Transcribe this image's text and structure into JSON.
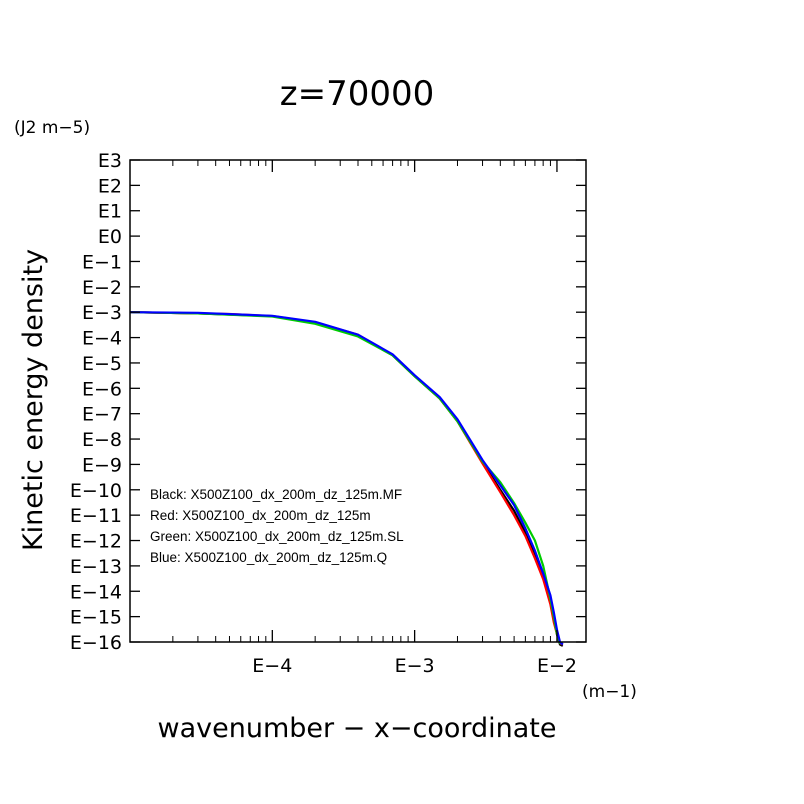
{
  "chart_data": {
    "type": "line",
    "title": "z=70000",
    "xlabel": "wavenumber − x−coordinate",
    "xunit": "(m−1)",
    "ylabel": "Kinetic energy density",
    "yunit": "(J2 m−5)",
    "x_scale": "log",
    "y_scale": "log",
    "xlim": [
      1e-05,
      0.016
    ],
    "ylim": [
      1e-16,
      1000
    ],
    "x_ticks": [
      {
        "value": 0.0001,
        "label": "E−4"
      },
      {
        "value": 0.001,
        "label": "E−3"
      },
      {
        "value": 0.01,
        "label": "E−2"
      }
    ],
    "y_ticks": [
      {
        "value": 1000.0,
        "label": "E3"
      },
      {
        "value": 100.0,
        "label": "E2"
      },
      {
        "value": 10.0,
        "label": "E1"
      },
      {
        "value": 1.0,
        "label": "E0"
      },
      {
        "value": 0.1,
        "label": "E−1"
      },
      {
        "value": 0.01,
        "label": "E−2"
      },
      {
        "value": 0.001,
        "label": "E−3"
      },
      {
        "value": 0.0001,
        "label": "E−4"
      },
      {
        "value": 1e-05,
        "label": "E−5"
      },
      {
        "value": 1e-06,
        "label": "E−6"
      },
      {
        "value": 1e-07,
        "label": "E−7"
      },
      {
        "value": 1e-08,
        "label": "E−8"
      },
      {
        "value": 1e-09,
        "label": "E−9"
      },
      {
        "value": 1e-10,
        "label": "E−10"
      },
      {
        "value": 1e-11,
        "label": "E−11"
      },
      {
        "value": 1e-12,
        "label": "E−12"
      },
      {
        "value": 1e-13,
        "label": "E−13"
      },
      {
        "value": 1e-14,
        "label": "E−14"
      },
      {
        "value": 1e-15,
        "label": "E−15"
      },
      {
        "value": 1e-16,
        "label": "E−16"
      }
    ],
    "grid": false,
    "legend_position": "lower-left",
    "series": [
      {
        "name": "Black: X500Z100_dx_200m_dz_125m.MF",
        "color": "#000000",
        "x": [
          1e-05,
          3e-05,
          0.0001,
          0.0002,
          0.0004,
          0.0007,
          0.001,
          0.0015,
          0.002,
          0.003,
          0.004,
          0.005,
          0.006,
          0.007,
          0.008,
          0.009,
          0.0095,
          0.01,
          0.0105,
          0.011
        ],
        "y": [
          0.001,
          0.0009,
          0.0007,
          0.0004,
          0.00012,
          2e-05,
          3e-06,
          4e-07,
          5e-08,
          1.2e-09,
          1e-10,
          1.5e-11,
          2e-12,
          3e-13,
          4e-14,
          5e-15,
          1e-15,
          2e-16,
          8e-17,
          7e-17
        ]
      },
      {
        "name": "Red: X500Z100_dx_200m_dz_125m",
        "color": "#ff0000",
        "x": [
          1e-05,
          3e-05,
          5e-05,
          0.0001,
          0.0002,
          0.0004,
          0.0007,
          0.001,
          0.0015,
          0.002,
          0.003,
          0.004,
          0.005,
          0.006,
          0.007,
          0.008,
          0.009,
          0.0095,
          0.01,
          0.0105,
          0.011
        ],
        "y": [
          0.001,
          0.0009,
          0.00085,
          0.0007,
          0.0004,
          0.00013,
          2.1e-05,
          3.1e-06,
          4e-07,
          5e-08,
          1.1e-09,
          8e-11,
          1e-11,
          1.5e-12,
          2e-13,
          3e-14,
          3e-15,
          6e-16,
          2e-16,
          9e-17,
          8e-17
        ]
      },
      {
        "name": "Green: X500Z100_dx_200m_dz_125m.SL",
        "color": "#00cc00",
        "x": [
          1e-05,
          3e-05,
          0.0001,
          0.0002,
          0.0004,
          0.0007,
          0.001,
          0.0015,
          0.002,
          0.003,
          0.004,
          0.005,
          0.006,
          0.007,
          0.008,
          0.009,
          0.0095,
          0.01,
          0.0105,
          0.011
        ],
        "y": [
          0.001,
          0.0009,
          0.00068,
          0.00035,
          0.00011,
          2e-05,
          3e-06,
          4e-07,
          5e-08,
          1.3e-09,
          2e-10,
          3e-11,
          5e-12,
          1e-12,
          1e-13,
          5e-15,
          1e-15,
          2e-16,
          9e-17,
          9e-17
        ]
      },
      {
        "name": "Blue: X500Z100_dx_200m_dz_125m.Q",
        "color": "#0000ff",
        "x": [
          1e-05,
          3e-05,
          0.0001,
          0.0002,
          0.0004,
          0.0007,
          0.001,
          0.0015,
          0.002,
          0.003,
          0.004,
          0.005,
          0.006,
          0.007,
          0.008,
          0.009,
          0.0095,
          0.01,
          0.0105,
          0.011
        ],
        "y": [
          0.001,
          0.00095,
          0.00072,
          0.00042,
          0.00013,
          2.2e-05,
          3.3e-06,
          4.5e-07,
          6e-08,
          1.5e-09,
          1.5e-10,
          2.5e-11,
          3e-12,
          4e-13,
          5e-14,
          7e-15,
          1.5e-15,
          3e-16,
          1e-16,
          8e-17
        ]
      }
    ]
  }
}
